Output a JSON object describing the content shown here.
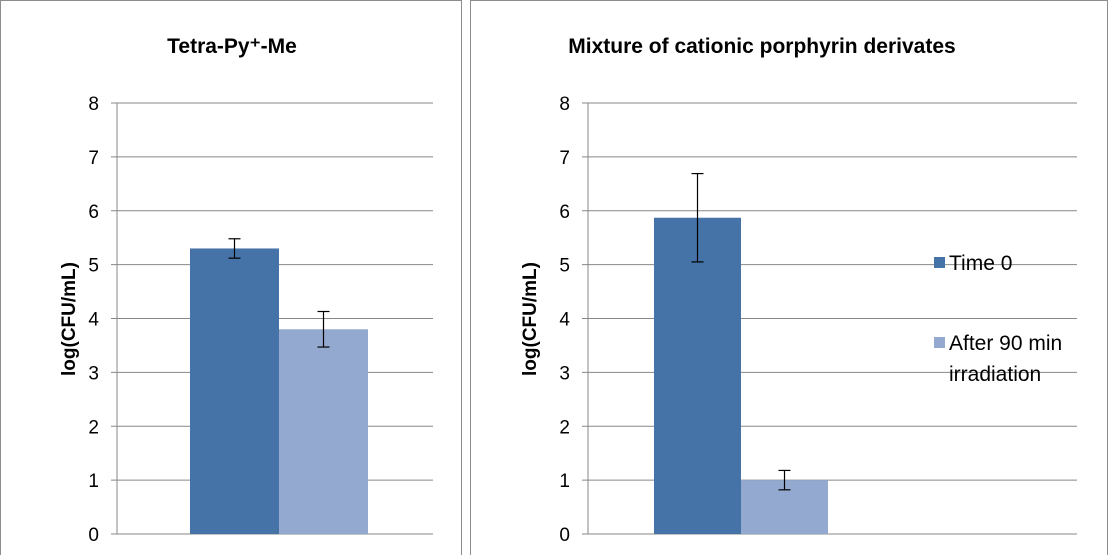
{
  "colors": {
    "series_0": "#4572a7",
    "series_1": "#93a9cf",
    "grid": "#878787",
    "error_bar": "#000000"
  },
  "legend": {
    "placement": "right",
    "items": [
      {
        "label": "Time 0",
        "color": "#4572a7"
      },
      {
        "lines": [
          "After 90 min",
          "irradiation"
        ],
        "color": "#93a9cf"
      }
    ]
  },
  "chart_data": [
    {
      "type": "bar",
      "title": "Tetra-Py⁺-Me",
      "ylabel": "log(CFU/mL)",
      "ylim": [
        0,
        8
      ],
      "yticks": [
        "0",
        "1",
        "2",
        "3",
        "4",
        "5",
        "6",
        "7",
        "8"
      ],
      "grid": true,
      "series": [
        {
          "name": "Time 0",
          "values": [
            5.3
          ],
          "error": [
            0.18
          ]
        },
        {
          "name": "After 90 min irradiation",
          "values": [
            3.8
          ],
          "error": [
            0.33
          ]
        }
      ]
    },
    {
      "type": "bar",
      "title": "Mixture of cationic porphyrin derivates",
      "ylabel": "log(CFU/mL)",
      "ylim": [
        0,
        8
      ],
      "yticks": [
        "0",
        "1",
        "2",
        "3",
        "4",
        "5",
        "6",
        "7",
        "8"
      ],
      "grid": true,
      "series": [
        {
          "name": "Time 0",
          "values": [
            5.87
          ],
          "error": [
            0.82
          ]
        },
        {
          "name": "After 90 min irradiation",
          "values": [
            1.0
          ],
          "error": [
            0.18
          ]
        }
      ]
    }
  ]
}
